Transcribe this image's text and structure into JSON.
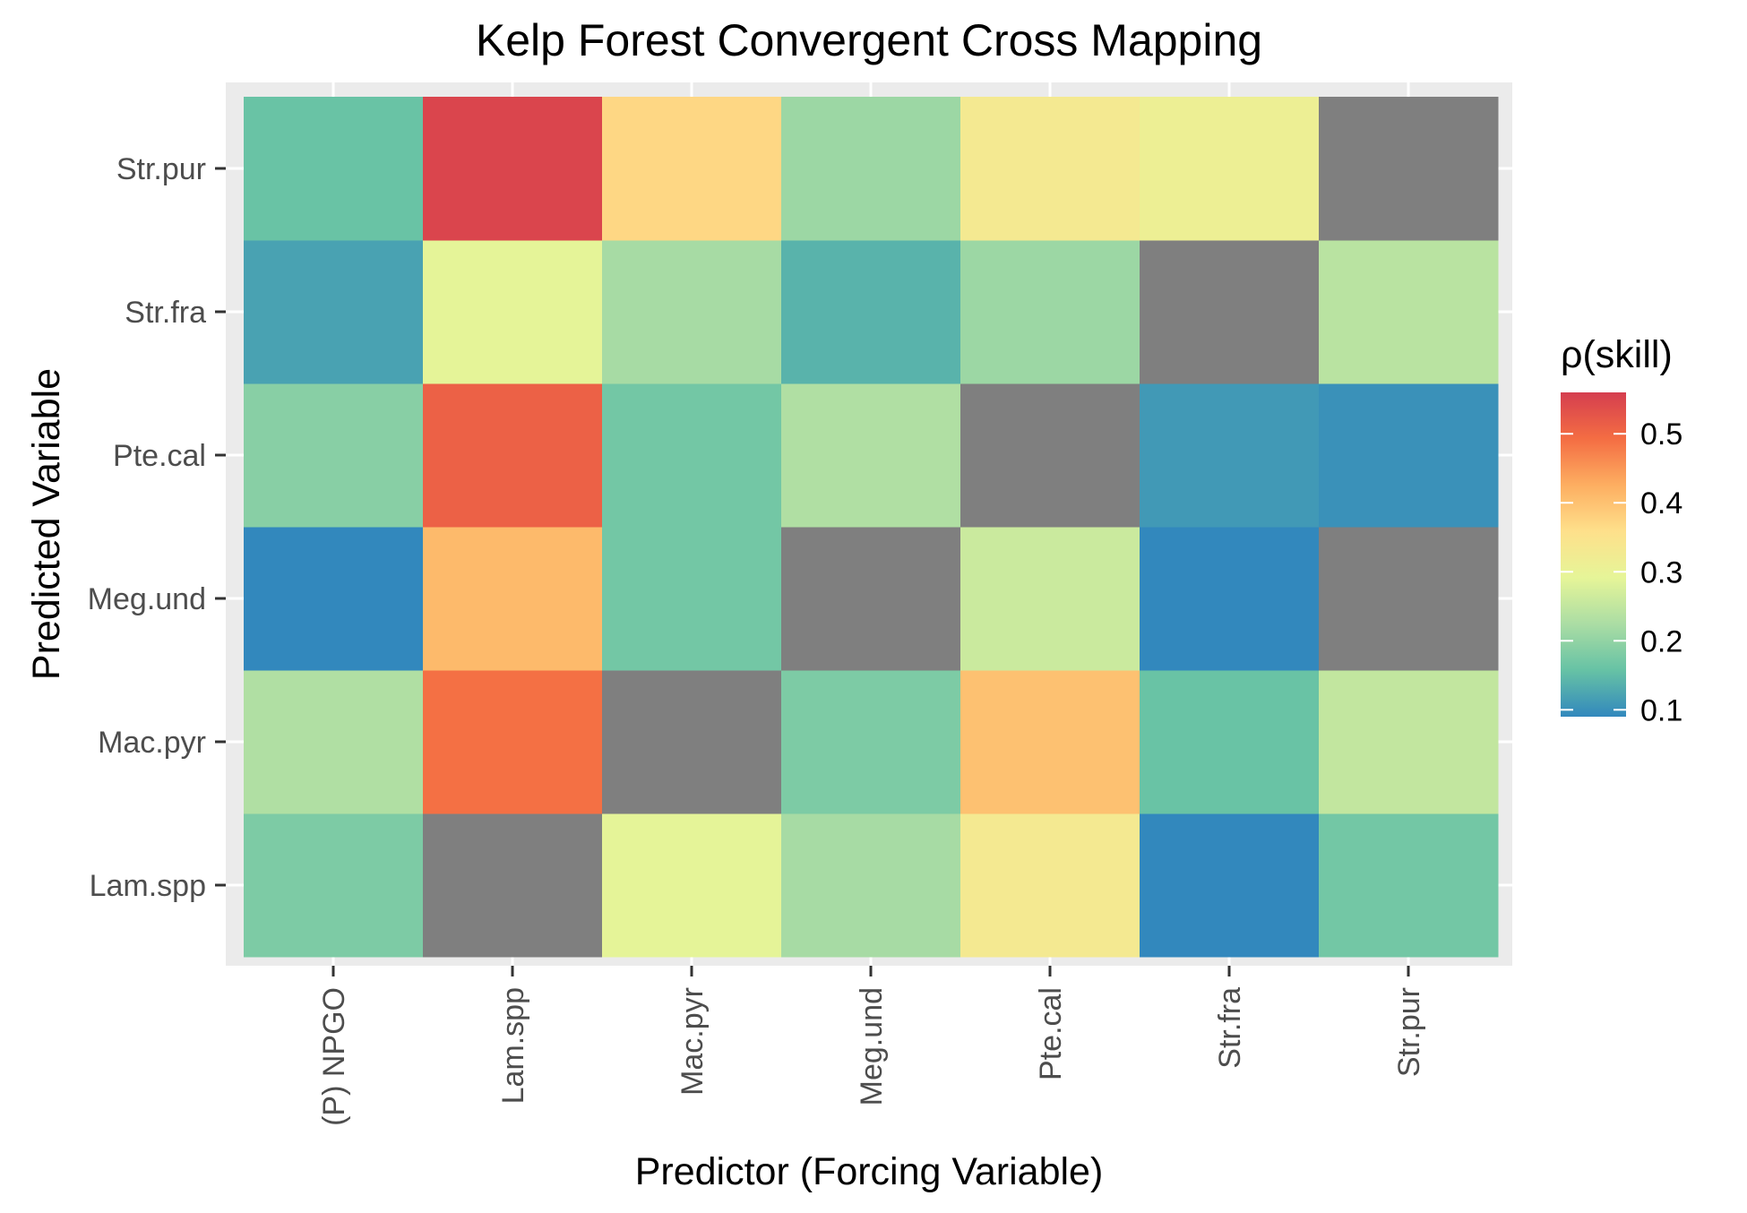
{
  "chart_data": {
    "type": "heatmap",
    "title": "Kelp Forest Convergent Cross Mapping",
    "xlabel": "Predictor (Forcing Variable)",
    "ylabel": "Predicted Variable",
    "x_categories": [
      "(P) NPGO",
      "Lam.spp",
      "Mac.pyr",
      "Meg.und",
      "Pte.cal",
      "Str.fra",
      "Str.pur"
    ],
    "y_categories": [
      "Lam.spp",
      "Mac.pyr",
      "Meg.und",
      "Pte.cal",
      "Str.fra",
      "Str.pur"
    ],
    "values": [
      [
        0.18,
        null,
        0.29,
        0.22,
        0.33,
        0.09,
        0.17
      ],
      [
        0.23,
        0.49,
        null,
        0.18,
        0.4,
        0.16,
        0.25
      ],
      [
        0.09,
        0.41,
        0.17,
        null,
        0.26,
        0.09,
        null
      ],
      [
        0.19,
        0.51,
        0.17,
        0.23,
        null,
        0.11,
        0.1
      ],
      [
        0.12,
        0.29,
        0.22,
        0.14,
        0.21,
        null,
        0.24
      ],
      [
        0.16,
        0.55,
        0.37,
        0.21,
        0.33,
        0.31,
        null
      ]
    ],
    "missing_color": "#7f7f7f",
    "colorscale": [
      "#3288bd",
      "#66c2a5",
      "#abdda4",
      "#e6f598",
      "#fee08b",
      "#fdae61",
      "#f46d43",
      "#d53e4f"
    ],
    "value_range": [
      0.09,
      0.56
    ],
    "grid": true,
    "legend": {
      "title": "ρ(skill)",
      "position": "right",
      "breaks": [
        0.1,
        0.2,
        0.3,
        0.4,
        0.5
      ],
      "labels": [
        "0.1",
        "0.2",
        "0.3",
        "0.4",
        "0.5"
      ]
    }
  }
}
